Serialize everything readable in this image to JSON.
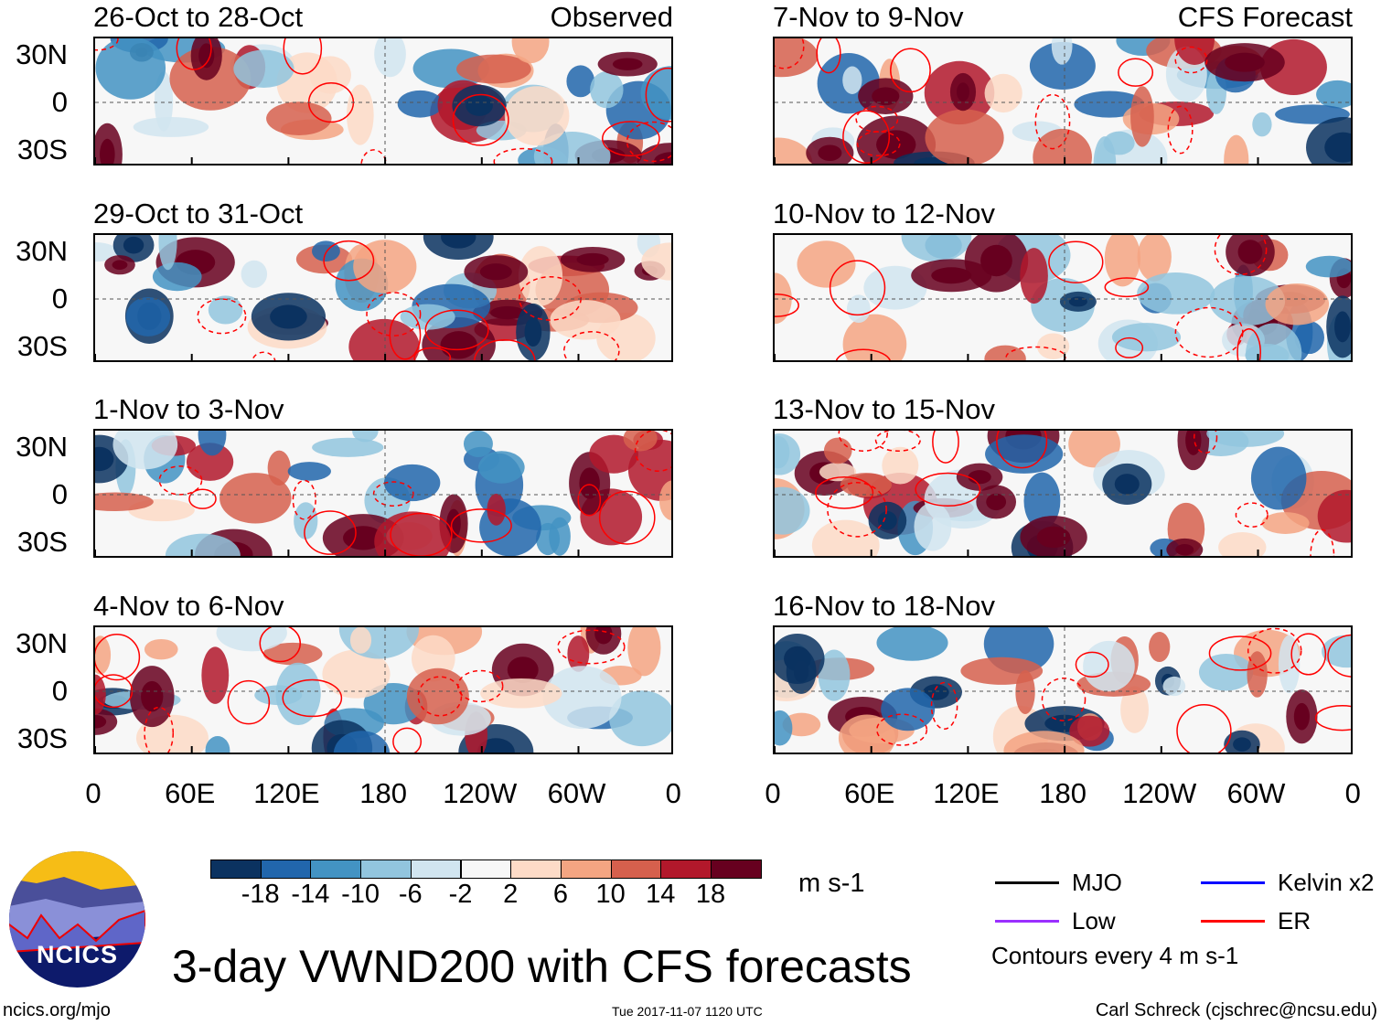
{
  "panels_left": [
    {
      "title": "26-Oct to 28-Oct",
      "label": "Observed"
    },
    {
      "title": "29-Oct to 31-Oct",
      "label": ""
    },
    {
      "title": "1-Nov to 3-Nov",
      "label": ""
    },
    {
      "title": "4-Nov to 6-Nov",
      "label": ""
    }
  ],
  "panels_right": [
    {
      "title": "7-Nov to 9-Nov",
      "label": "CFS Forecast"
    },
    {
      "title": "10-Nov to 12-Nov",
      "label": ""
    },
    {
      "title": "13-Nov to 15-Nov",
      "label": ""
    },
    {
      "title": "16-Nov to 18-Nov",
      "label": ""
    }
  ],
  "y_ticks": [
    "30N",
    "0",
    "30S"
  ],
  "x_ticks": [
    "0",
    "60E",
    "120E",
    "180",
    "120W",
    "60W",
    "0"
  ],
  "colorbar": {
    "colors": [
      "#0b3260",
      "#2166ac",
      "#4393c3",
      "#92c5de",
      "#d1e5f0",
      "#f7f7f7",
      "#fddbc7",
      "#f4a582",
      "#d6604d",
      "#b2182b",
      "#67001f"
    ],
    "labels": [
      "-18",
      "-14",
      "-10",
      "-6",
      "-2",
      "2",
      "6",
      "10",
      "14",
      "18"
    ],
    "units": "m s-1"
  },
  "legend": {
    "items": [
      {
        "label": "MJO",
        "color": "#000000"
      },
      {
        "label": "Kelvin x2",
        "color": "#0000ff"
      },
      {
        "label": "Low",
        "color": "#9b30ff"
      },
      {
        "label": "ER",
        "color": "#ff0000"
      }
    ],
    "note": "Contours every 4 m s-1"
  },
  "logo_text": "NCICS",
  "main_title": "3-day VWND200 with CFS forecasts",
  "footer": {
    "left": "ncics.org/mjo",
    "center": "Tue 2017-11-07 1120 UTC",
    "right": "Carl Schreck (cjschrec@ncsu.edu)"
  }
}
